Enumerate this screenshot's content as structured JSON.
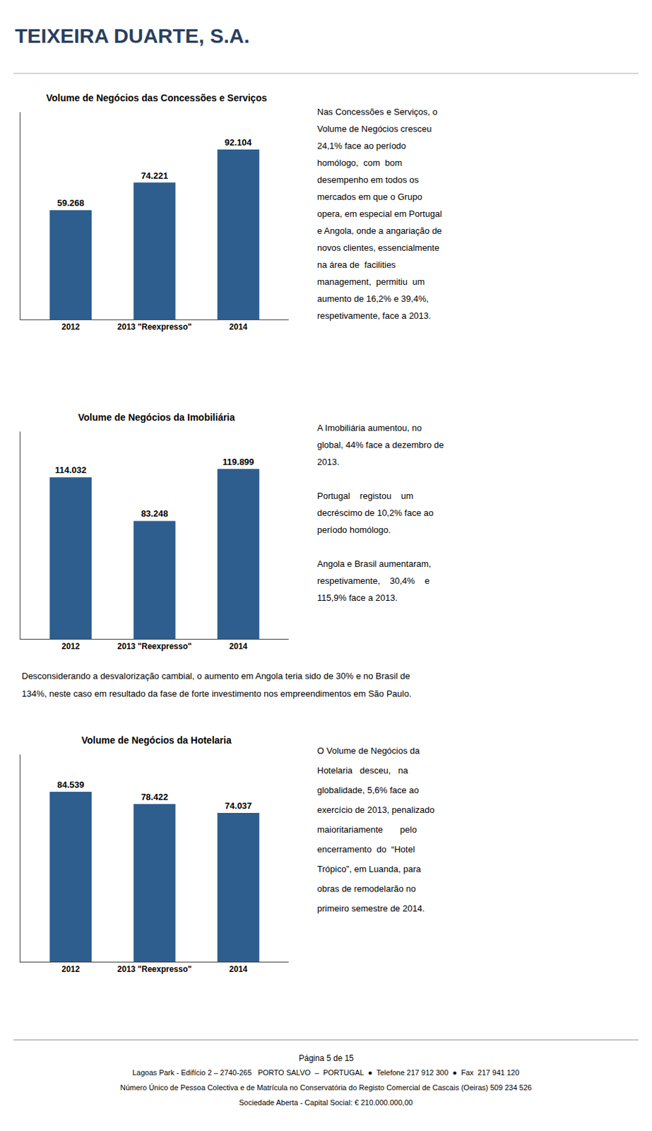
{
  "title": "TEIXEIRA DUARTE, S.A.",
  "chart_data": [
    {
      "type": "bar",
      "title": "Volume de Negócios das Concessões e Serviços",
      "categories": [
        "2012",
        "2013 \"Reexpresso\"",
        "2014"
      ],
      "values": [
        59.268,
        74.221,
        92.104
      ],
      "color": "#2E5E8E",
      "ylim": [
        0,
        112.36688
      ],
      "data_labels": true,
      "tick_labels": "x",
      "grid": false,
      "annotations": [
        "Nas Concessões e Serviços, o\nVolume de Negócios cresceu\n24,1% face ao período\nhomólogo,  com  bom\ndesempenho em todos os\nmercados em que o Grupo\nopera, em especial em Portugal\ne Angola, onde a angariação de\nnovos clientes, essencialmente\nna área de  facilities\nmanagement,  permitiu  um\naumento de 16,2% e 39,4%,\nrespetivamente, face a 2013."
      ]
    },
    {
      "type": "bar",
      "title": "Volume de Negócios da Imobiliária",
      "categories": [
        "2012",
        "2013 \"Reexpresso\"",
        "2014"
      ],
      "values": [
        114.032,
        83.248,
        119.899
      ],
      "color": "#2E5E8E",
      "ylim": [
        0,
        146.27678
      ],
      "data_labels": true,
      "tick_labels": "x",
      "grid": false,
      "annotations": [
        "A Imobiliária aumentou, no\nglobal, 44% face a dezembro de\n2013.",
        "Portugal    registou    um\ndecréscimo de 10,2% face ao\nperíodo homólogo.",
        "Angola e Brasil aumentaram,\nrespetivamente,    30,4%    e\n115,9% face a 2013."
      ]
    },
    {
      "type": "bar",
      "title": "Volume de Negócios da Hotelaria",
      "categories": [
        "2012",
        "2013 \"Reexpresso\"",
        "2014"
      ],
      "values": [
        84.539,
        78.422,
        74.037
      ],
      "color": "#2E5E8E",
      "ylim": [
        0,
        103.13758
      ],
      "data_labels": true,
      "tick_labels": "x",
      "grid": false,
      "annotations": [
        "O Volume de Negócios da\nHotelaria   desceu,   na\nglobalidade, 5,6% face ao\nexercício de 2013, penalizado\nmaioritariamente       pelo\nencerramento  do  “Hotel\nTrópico”, em Luanda, para\nobras de remodelarão no\nprimeiro semestre de 2014."
      ]
    }
  ],
  "annotations": [
    "Desconsiderando a desvalorização cambial, o aumento em Angola teria sido de 30% e no Brasil de\n134%, neste caso em resultado da fase de forte investimento nos empreendimentos em São Paulo.",
    "Página 5 de 15\nLagoas Park - Edifício 2 – 2740-265   PORTO SALVO  –  PORTUGAL  ●  Telefone 217 912 300  ●  Fax  217 941 120\nNúmero Único de Pessoa Colectiva e de Matrícula no Conservatória do Registo Comercial de Cascais (Oeiras) 509 234 526\nSociedade Aberta - Capital Social: € 210.000.000,00"
  ]
}
